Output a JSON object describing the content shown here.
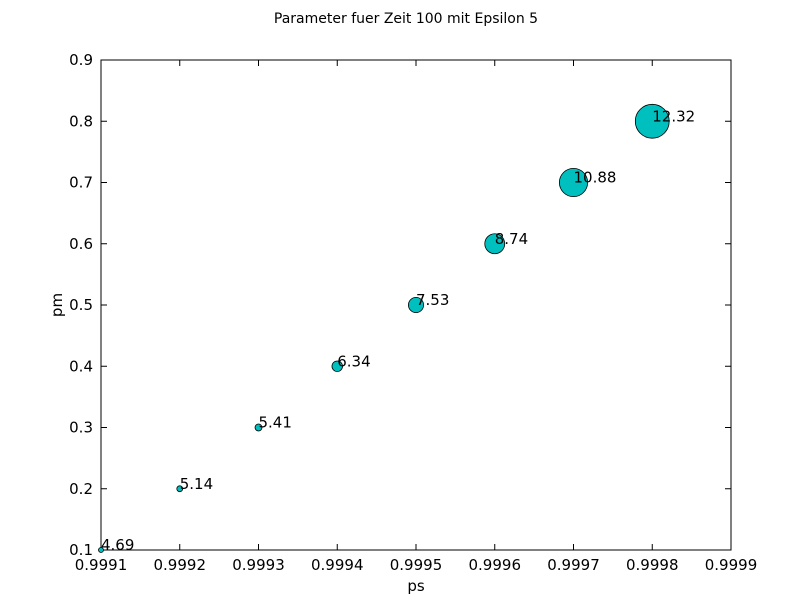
{
  "chart_data": {
    "type": "scatter",
    "title": "Parameter fuer Zeit 100 mit Epsilon 5",
    "xlabel": "ps",
    "ylabel": "pm",
    "xlim": [
      0.9991,
      0.9999
    ],
    "ylim": [
      0.1,
      0.9
    ],
    "x_ticks": [
      "0.9991",
      "0.9992",
      "0.9993",
      "0.9994",
      "0.9995",
      "0.9996",
      "0.9997",
      "0.9998",
      "0.9999"
    ],
    "y_ticks": [
      "0.1",
      "0.2",
      "0.3",
      "0.4",
      "0.5",
      "0.6",
      "0.7",
      "0.8",
      "0.9"
    ],
    "grid": false,
    "marker_color": "#00bfbf",
    "points": [
      {
        "x": 0.9991,
        "y": 0.1,
        "size": 4.69,
        "label": "4.69"
      },
      {
        "x": 0.9992,
        "y": 0.2,
        "size": 5.14,
        "label": "5.14"
      },
      {
        "x": 0.9993,
        "y": 0.3,
        "size": 5.41,
        "label": "5.41"
      },
      {
        "x": 0.9994,
        "y": 0.4,
        "size": 6.34,
        "label": "6.34"
      },
      {
        "x": 0.9995,
        "y": 0.5,
        "size": 7.53,
        "label": "7.53"
      },
      {
        "x": 0.9996,
        "y": 0.6,
        "size": 8.74,
        "label": "8.74"
      },
      {
        "x": 0.9997,
        "y": 0.7,
        "size": 10.88,
        "label": "10.88"
      },
      {
        "x": 0.9998,
        "y": 0.8,
        "size": 12.32,
        "label": "12.32"
      }
    ]
  }
}
